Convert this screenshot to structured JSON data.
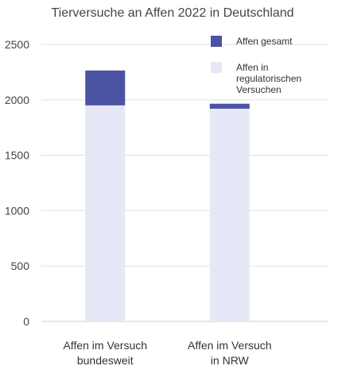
{
  "chart_data": {
    "type": "bar",
    "stacked": true,
    "title": "Tierversuche an Affen 2022 in Deutschland",
    "categories": [
      [
        "Affen im Versuch",
        "bundesweit"
      ],
      [
        "Affen im Versuch",
        "in NRW"
      ]
    ],
    "series": [
      {
        "name": [
          "Affen in",
          "regulatorischen",
          "Versuchen"
        ],
        "color": "#e6e8f7",
        "values": [
          1950,
          1920
        ]
      },
      {
        "name": [
          "Affen gesamt"
        ],
        "color": "#4a54a3",
        "values": [
          315,
          45
        ]
      }
    ],
    "legend_order": [
      1,
      0
    ],
    "yticks": [
      0,
      500,
      1000,
      1500,
      2000,
      2500
    ],
    "ylim": [
      0,
      2500
    ],
    "grid": true,
    "legend_position": "top-right"
  }
}
